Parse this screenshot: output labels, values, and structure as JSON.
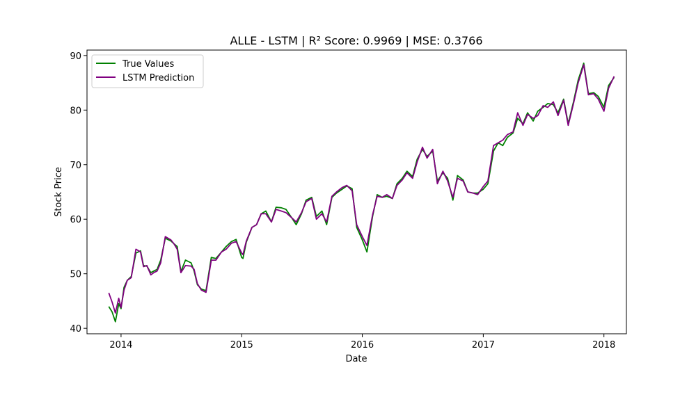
{
  "chart_data": {
    "type": "line",
    "title": "ALLE - LSTM | R² Score: 0.9969 | MSE: 0.3766",
    "xlabel": "Date",
    "ylabel": "Stock Price",
    "xlim": [
      "2013-09-20",
      "2018-03-10"
    ],
    "ylim": [
      39,
      91
    ],
    "x_ticks": [
      {
        "value": "2014-01-01",
        "label": "2014"
      },
      {
        "value": "2015-01-01",
        "label": "2015"
      },
      {
        "value": "2016-01-01",
        "label": "2016"
      },
      {
        "value": "2017-01-01",
        "label": "2017"
      },
      {
        "value": "2018-01-01",
        "label": "2018"
      }
    ],
    "y_ticks": [
      40,
      50,
      60,
      70,
      80,
      90
    ],
    "grid": false,
    "legend_position": "top-left",
    "x": [
      "2013-11-25",
      "2013-12-05",
      "2013-12-15",
      "2013-12-25",
      "2014-01-01",
      "2014-01-10",
      "2014-01-20",
      "2014-02-01",
      "2014-02-15",
      "2014-03-01",
      "2014-03-10",
      "2014-03-20",
      "2014-04-01",
      "2014-04-10",
      "2014-04-20",
      "2014-05-01",
      "2014-05-15",
      "2014-06-01",
      "2014-06-10",
      "2014-06-20",
      "2014-07-01",
      "2014-07-15",
      "2014-08-01",
      "2014-08-10",
      "2014-08-20",
      "2014-09-01",
      "2014-09-15",
      "2014-10-01",
      "2014-10-15",
      "2014-11-01",
      "2014-11-15",
      "2014-12-01",
      "2014-12-15",
      "2015-01-01",
      "2015-01-05",
      "2015-01-15",
      "2015-02-01",
      "2015-02-15",
      "2015-03-01",
      "2015-03-15",
      "2015-04-01",
      "2015-04-15",
      "2015-05-01",
      "2015-05-15",
      "2015-06-01",
      "2015-06-15",
      "2015-07-01",
      "2015-07-15",
      "2015-08-01",
      "2015-08-15",
      "2015-09-01",
      "2015-09-15",
      "2015-10-01",
      "2015-10-15",
      "2015-11-01",
      "2015-11-15",
      "2015-12-01",
      "2015-12-15",
      "2016-01-01",
      "2016-01-15",
      "2016-02-01",
      "2016-02-15",
      "2016-03-01",
      "2016-03-15",
      "2016-04-01",
      "2016-04-15",
      "2016-05-01",
      "2016-05-15",
      "2016-06-01",
      "2016-06-15",
      "2016-07-01",
      "2016-07-15",
      "2016-08-01",
      "2016-08-15",
      "2016-09-01",
      "2016-09-15",
      "2016-10-01",
      "2016-10-15",
      "2016-11-01",
      "2016-11-15",
      "2016-12-01",
      "2016-12-15",
      "2017-01-01",
      "2017-01-15",
      "2017-02-01",
      "2017-02-15",
      "2017-03-01",
      "2017-03-15",
      "2017-04-01",
      "2017-04-15",
      "2017-05-01",
      "2017-05-15",
      "2017-06-01",
      "2017-06-15",
      "2017-07-01",
      "2017-07-15",
      "2017-08-01",
      "2017-08-15",
      "2017-09-01",
      "2017-09-15",
      "2017-10-01",
      "2017-10-15",
      "2017-11-01",
      "2017-11-15",
      "2017-12-01",
      "2017-12-15",
      "2018-01-01",
      "2018-01-15",
      "2018-02-01"
    ],
    "series": [
      {
        "name": "True Values",
        "color": "#008000",
        "values": [
          44.0,
          43.0,
          41.2,
          44.5,
          43.6,
          47.5,
          48.8,
          49.5,
          53.8,
          54.2,
          51.5,
          51.4,
          50.2,
          50.5,
          50.8,
          52.5,
          56.5,
          56.0,
          55.5,
          55.0,
          50.4,
          52.5,
          52.0,
          50.5,
          48.0,
          47.2,
          46.9,
          53.0,
          52.8,
          54.0,
          55.0,
          55.9,
          56.3,
          53.0,
          52.8,
          55.8,
          58.5,
          59.0,
          61.0,
          61.5,
          59.5,
          62.2,
          62.1,
          61.8,
          60.3,
          59.0,
          61.0,
          63.5,
          64.0,
          60.5,
          61.5,
          59.0,
          64.0,
          64.8,
          65.5,
          66.1,
          65.6,
          58.5,
          56.2,
          54.0,
          60.5,
          64.5,
          64.0,
          64.2,
          63.8,
          66.5,
          67.5,
          68.8,
          67.8,
          71.0,
          72.8,
          71.5,
          72.5,
          67.0,
          68.5,
          67.5,
          63.5,
          68.0,
          67.2,
          65.0,
          64.8,
          64.8,
          65.5,
          66.5,
          72.5,
          74.0,
          73.5,
          75.0,
          75.8,
          78.5,
          77.5,
          79.5,
          78.0,
          79.8,
          80.5,
          81.2,
          81.0,
          79.5,
          82.0,
          77.5,
          81.5,
          85.5,
          88.6,
          83.0,
          83.2,
          82.5,
          80.5,
          84.5,
          86.0
        ]
      },
      {
        "name": "LSTM Prediction",
        "color": "#800080",
        "values": [
          46.5,
          44.8,
          42.8,
          45.5,
          43.8,
          47.0,
          48.8,
          49.3,
          54.5,
          54.0,
          51.3,
          51.5,
          49.8,
          50.2,
          50.5,
          52.0,
          56.8,
          56.2,
          55.5,
          54.5,
          50.2,
          51.5,
          51.4,
          50.8,
          48.2,
          47.0,
          46.6,
          52.5,
          52.5,
          54.0,
          54.5,
          55.6,
          55.9,
          53.8,
          53.5,
          56.0,
          58.5,
          59.0,
          61.0,
          61.0,
          59.5,
          61.8,
          61.5,
          61.2,
          60.3,
          59.5,
          61.2,
          63.2,
          63.8,
          60.0,
          61.0,
          59.5,
          64.2,
          65.0,
          65.8,
          66.2,
          65.2,
          59.0,
          56.8,
          55.2,
          60.8,
          64.2,
          64.0,
          64.5,
          63.8,
          66.2,
          67.2,
          68.5,
          67.5,
          70.5,
          73.2,
          71.2,
          72.8,
          66.5,
          68.8,
          67.0,
          64.0,
          67.5,
          67.0,
          65.0,
          64.8,
          64.5,
          66.0,
          67.0,
          73.5,
          74.0,
          74.5,
          75.5,
          76.0,
          79.5,
          77.2,
          79.2,
          78.5,
          79.0,
          80.8,
          80.5,
          81.5,
          79.0,
          81.8,
          77.2,
          81.2,
          85.0,
          88.3,
          82.8,
          83.0,
          82.0,
          79.8,
          84.0,
          86.2
        ]
      }
    ]
  }
}
